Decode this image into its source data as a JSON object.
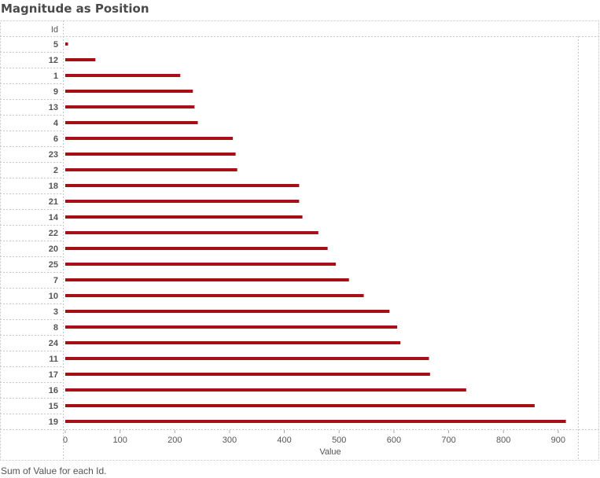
{
  "page": {
    "title": "Magnitude as Position",
    "caption": "Sum of Value for each Id."
  },
  "colors": {
    "bar": "#a50f15",
    "grid": "#c8c8c8",
    "label": "#555555"
  },
  "chart_data": {
    "type": "bar",
    "orientation": "horizontal",
    "title": "Magnitude as Position",
    "row_header": "Id",
    "xlabel": "Value",
    "xlim": [
      0,
      950
    ],
    "x_ticks": [
      0,
      100,
      200,
      300,
      400,
      500,
      600,
      700,
      800,
      900
    ],
    "categories": [
      "5",
      "12",
      "1",
      "9",
      "13",
      "4",
      "6",
      "23",
      "2",
      "18",
      "21",
      "14",
      "22",
      "20",
      "25",
      "7",
      "10",
      "3",
      "8",
      "24",
      "11",
      "17",
      "16",
      "15",
      "19"
    ],
    "values": [
      5,
      55,
      210,
      233,
      236,
      242,
      306,
      311,
      314,
      427,
      427,
      433,
      462,
      479,
      494,
      518,
      545,
      592,
      606,
      612,
      664,
      666,
      732,
      857,
      914
    ],
    "grid": false,
    "legend": "none"
  }
}
